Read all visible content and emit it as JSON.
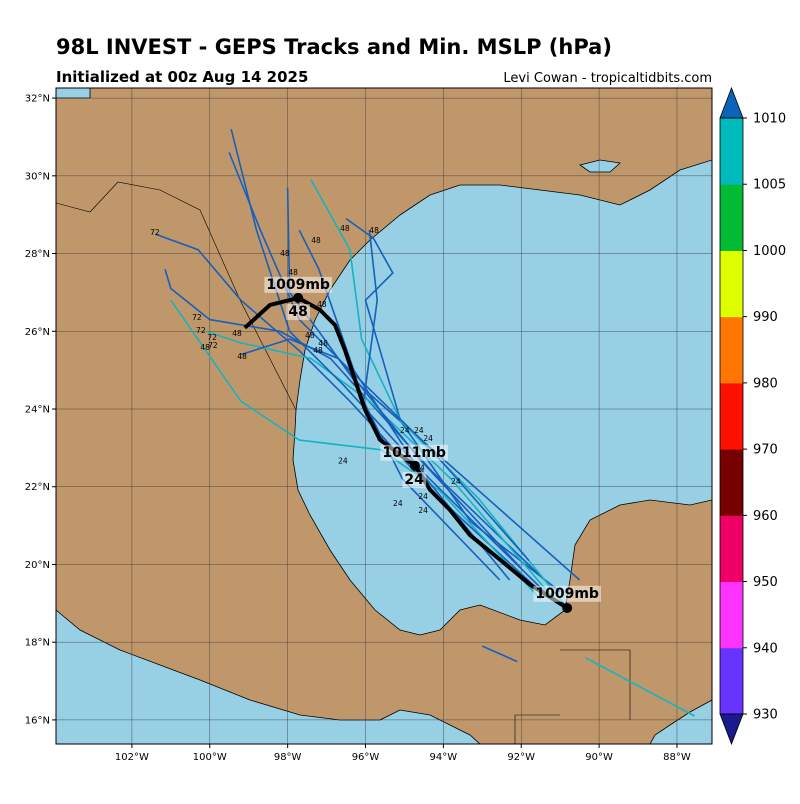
{
  "chart_data": {
    "type": "track-map",
    "title": "98L INVEST - GEPS Tracks and Min. MSLP (hPa)",
    "subtitle": "Initialized at 00z Aug 14 2025",
    "credit": "Levi Cowan - tropicaltidbits.com",
    "xlim": [
      -103.95,
      -87.1
    ],
    "ylim": [
      15.38,
      32.26
    ],
    "xticks": [
      {
        "value": -102,
        "label": "102°W"
      },
      {
        "value": -100,
        "label": "100°W"
      },
      {
        "value": -98,
        "label": "98°W"
      },
      {
        "value": -96,
        "label": "96°W"
      },
      {
        "value": -94,
        "label": "94°W"
      },
      {
        "value": -92,
        "label": "92°W"
      },
      {
        "value": -90,
        "label": "90°W"
      },
      {
        "value": -88,
        "label": "88°W"
      }
    ],
    "yticks": [
      {
        "value": 16,
        "label": "16°N"
      },
      {
        "value": 18,
        "label": "18°N"
      },
      {
        "value": 20,
        "label": "20°N"
      },
      {
        "value": 22,
        "label": "22°N"
      },
      {
        "value": 24,
        "label": "24°N"
      },
      {
        "value": 26,
        "label": "26°N"
      },
      {
        "value": 28,
        "label": "28°N"
      },
      {
        "value": 30,
        "label": "30°N"
      },
      {
        "value": 32,
        "label": "32°N"
      }
    ],
    "grid": true,
    "tracks": [
      {
        "color": "#1560bd",
        "lon": [
          -90.5,
          -96.3,
          -97.2,
          -97.95,
          -98.0
        ],
        "lat": [
          19.6,
          24.75,
          26.0,
          27.0,
          29.7
        ]
      },
      {
        "color": "#1560bd",
        "lon": [
          -91.0,
          -93.3,
          -95.1,
          -96.0,
          -95.3,
          -95.8,
          -96.5
        ],
        "lat": [
          19.3,
          21.1,
          23.7,
          26.8,
          27.5,
          28.4,
          28.9
        ]
      },
      {
        "color": "#1560bd",
        "lon": [
          -91.5,
          -94.1,
          -96.4,
          -97.7,
          -99.2,
          -100.3,
          -101.4
        ],
        "lat": [
          19.3,
          21.7,
          24.2,
          25.5,
          26.8,
          28.1,
          28.5
        ]
      },
      {
        "color": "#1560bd",
        "lon": [
          -91.4,
          -94.3,
          -96.9,
          -98.2,
          -100.0,
          -101.0,
          -101.15
        ],
        "lat": [
          19.6,
          22.4,
          25.3,
          26.0,
          26.3,
          27.1,
          27.6
        ]
      },
      {
        "color": "#14b4c0",
        "lon": [
          -91.15,
          -93.8,
          -95.9,
          -97.4,
          -99.2,
          -100.1
        ],
        "lat": [
          19.1,
          22.2,
          24.2,
          25.3,
          25.7,
          26.0
        ]
      },
      {
        "color": "#14b4c0",
        "lon": [
          -97.4,
          -96.4,
          -96.1,
          -95.1,
          -93.1,
          -90.75
        ],
        "lat": [
          29.9,
          28.1,
          25.8,
          23.7,
          21.7,
          18.8
        ]
      },
      {
        "color": "#1560bd",
        "lon": [
          -92.0,
          -94.6,
          -96.7,
          -97.95,
          -99.2
        ],
        "lat": [
          19.9,
          22.7,
          25.3,
          25.8,
          25.4
        ]
      },
      {
        "color": "#1560bd",
        "lon": [
          -91.3,
          -94.35,
          -96.55,
          -97.95,
          -98.8,
          -99.45
        ],
        "lat": [
          19.2,
          22.2,
          24.6,
          26.0,
          28.6,
          31.2
        ]
      },
      {
        "color": "#1560bd",
        "lon": [
          -91.8,
          -94.35,
          -96.4,
          -97.7,
          -98.7,
          -99.5
        ],
        "lat": [
          20.1,
          23.0,
          25.0,
          26.3,
          28.6,
          30.6
        ]
      },
      {
        "color": "#14b4c0",
        "lon": [
          -91.5,
          -94.1,
          -95.6,
          -97.7,
          -99.2,
          -101.0
        ],
        "lat": [
          19.1,
          21.9,
          22.95,
          23.2,
          24.2,
          26.8
        ]
      },
      {
        "color": "#14b4c0",
        "lon": [
          -90.35,
          -87.55
        ],
        "lat": [
          17.6,
          16.1
        ]
      },
      {
        "color": "#1560bd",
        "lon": [
          -93.0,
          -92.1
        ],
        "lat": [
          17.9,
          17.5
        ]
      },
      {
        "color": "#1560bd",
        "lon": [
          -92.3,
          -94.6,
          -96.3,
          -97.2,
          -97.7
        ],
        "lat": [
          19.6,
          22.4,
          25.0,
          27.6,
          28.6
        ]
      },
      {
        "color": "#1560bd",
        "lon": [
          -92.55,
          -95.05,
          -96.05,
          -95.7,
          -95.9
        ],
        "lat": [
          19.6,
          22.2,
          24.2,
          26.8,
          28.6
        ]
      }
    ],
    "mean_track": {
      "color": "#000000",
      "lon": [
        -90.82,
        -91.77,
        -92.54,
        -93.32,
        -93.83,
        -94.34,
        -94.73,
        -95.11,
        -95.63,
        -96.01,
        -96.27,
        -96.53,
        -96.78,
        -97.17,
        -97.73,
        -98.45,
        -99.1
      ],
      "lat": [
        18.88,
        19.48,
        20.12,
        20.76,
        21.4,
        21.92,
        22.54,
        22.82,
        23.21,
        23.98,
        24.75,
        25.52,
        26.16,
        26.55,
        26.86,
        26.68,
        26.09
      ]
    },
    "mean_positions": {
      "lon": [
        -90.82,
        -94.73,
        -97.73
      ],
      "lat": [
        18.88,
        22.54,
        26.86
      ]
    },
    "annotations": [
      {
        "text": "1009mb",
        "lon": -90.82,
        "lat": 19.27
      },
      {
        "text": "1011mb",
        "lon": -94.75,
        "lat": 22.9
      },
      {
        "text": "24",
        "lon": -94.75,
        "lat": 22.2
      },
      {
        "text": "1009mb",
        "lon": -97.73,
        "lat": 27.22
      },
      {
        "text": "48",
        "lon": -97.73,
        "lat": 26.52
      }
    ],
    "hour_labels": [
      {
        "text": "72",
        "lon": -101.41,
        "lat": 28.56
      },
      {
        "text": "48",
        "lon": -98.07,
        "lat": 28.02
      },
      {
        "text": "48",
        "lon": -97.27,
        "lat": 28.35
      },
      {
        "text": "48",
        "lon": -96.53,
        "lat": 28.66
      },
      {
        "text": "48",
        "lon": -95.78,
        "lat": 28.61
      },
      {
        "text": "48",
        "lon": -97.86,
        "lat": 27.53
      },
      {
        "text": "48",
        "lon": -97.12,
        "lat": 26.7
      },
      {
        "text": "48",
        "lon": -97.43,
        "lat": 25.91
      },
      {
        "text": "48",
        "lon": -97.09,
        "lat": 25.7
      },
      {
        "text": "48",
        "lon": -97.22,
        "lat": 25.52
      },
      {
        "text": "48",
        "lon": -99.3,
        "lat": 25.96
      },
      {
        "text": "48",
        "lon": -100.12,
        "lat": 25.6
      },
      {
        "text": "48",
        "lon": -99.17,
        "lat": 25.37
      },
      {
        "text": "72",
        "lon": -100.33,
        "lat": 26.37
      },
      {
        "text": "72",
        "lon": -100.23,
        "lat": 26.03
      },
      {
        "text": "72",
        "lon": -99.94,
        "lat": 25.85
      },
      {
        "text": "72",
        "lon": -99.92,
        "lat": 25.65
      },
      {
        "text": "24",
        "lon": -94.99,
        "lat": 23.46
      },
      {
        "text": "24",
        "lon": -94.63,
        "lat": 23.46
      },
      {
        "text": "24",
        "lon": -94.39,
        "lat": 23.26
      },
      {
        "text": "24",
        "lon": -96.58,
        "lat": 22.67
      },
      {
        "text": "24",
        "lon": -94.6,
        "lat": 22.49
      },
      {
        "text": "24",
        "lon": -93.68,
        "lat": 22.15
      },
      {
        "text": "24",
        "lon": -94.52,
        "lat": 21.76
      },
      {
        "text": "24",
        "lon": -95.17,
        "lat": 21.58
      },
      {
        "text": "24",
        "lon": -94.52,
        "lat": 21.4
      }
    ],
    "colorbar": {
      "boundaries": [
        930,
        940,
        950,
        960,
        970,
        980,
        990,
        1000,
        1005,
        1010
      ],
      "colors": [
        "#6633ff",
        "#ff33ff",
        "#ee0066",
        "#770000",
        "#ff1100",
        "#ff7700",
        "#ddff00",
        "#00bb33",
        "#00bbbb"
      ],
      "under_color": "#1a1a8c",
      "over_color": "#0a64b8",
      "ticks": [
        930,
        940,
        950,
        960,
        970,
        980,
        990,
        1000,
        1005,
        1010
      ]
    }
  }
}
